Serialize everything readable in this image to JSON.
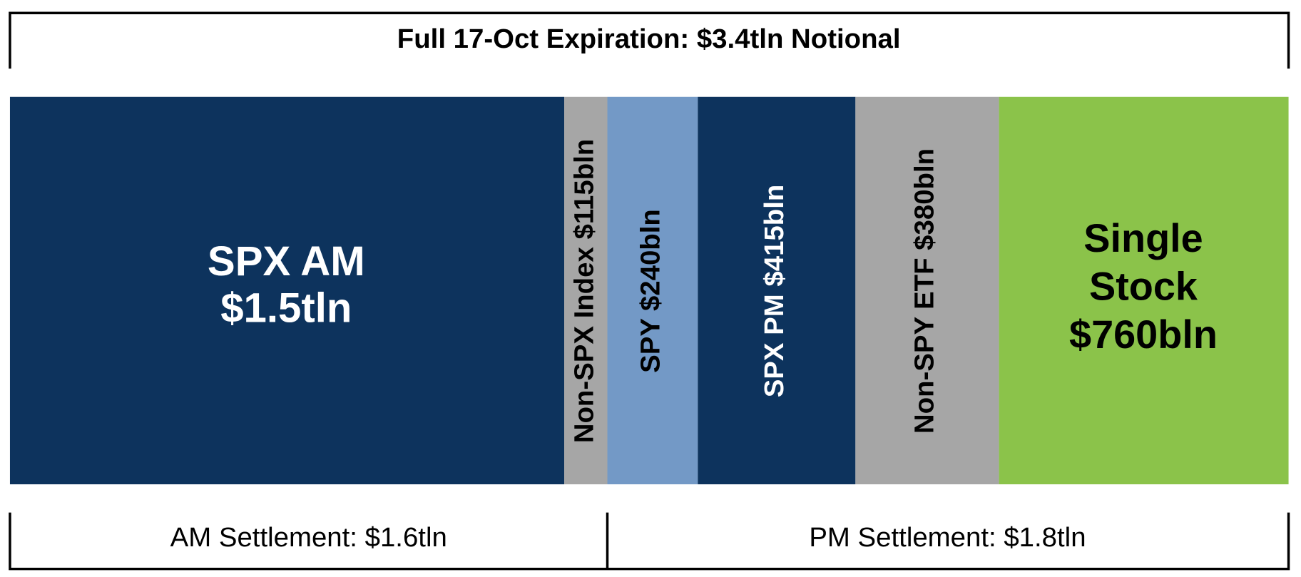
{
  "header": {
    "title": "Full 17-Oct Expiration: $3.4tln Notional"
  },
  "segments": [
    {
      "lines": [
        "SPX AM",
        "$1.5tln"
      ]
    },
    {
      "lines": [
        "Non-SPX Index $115bln"
      ]
    },
    {
      "lines": [
        "SPY $240bln"
      ]
    },
    {
      "lines": [
        "SPX PM $415bln"
      ]
    },
    {
      "lines": [
        "Non-SPY ETF $380bln"
      ]
    },
    {
      "lines": [
        "Single",
        "Stock",
        "$760bln"
      ]
    }
  ],
  "settlements": [
    {
      "label": "AM Settlement: $1.6tln"
    },
    {
      "label": "PM Settlement: $1.8tln"
    }
  ]
}
